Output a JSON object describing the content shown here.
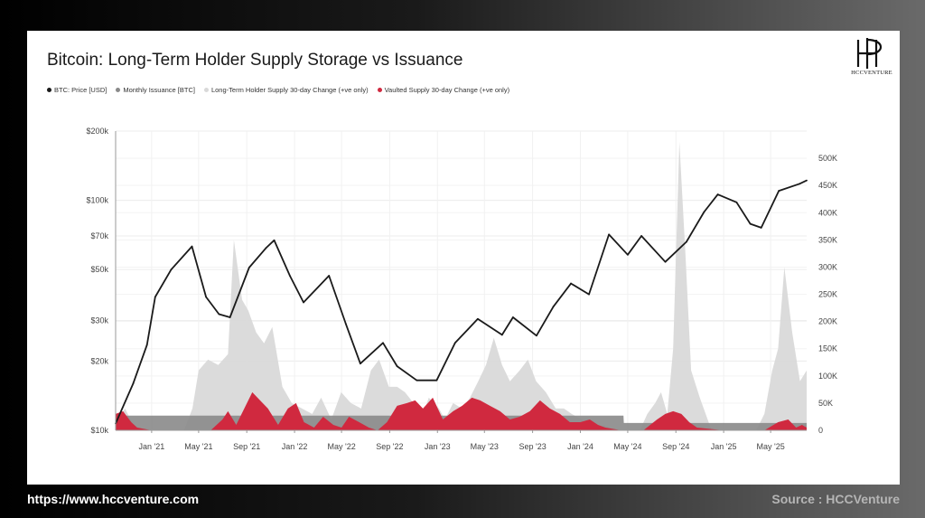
{
  "title": "Bitcoin: Long-Term Holder Supply Storage vs Issuance",
  "logo": {
    "text": "HCCVENTURE",
    "icon": "hcc-monogram-icon"
  },
  "footer": {
    "url": "https://www.hccventure.com",
    "source": "Source : HCCVenture"
  },
  "chart_data": {
    "type": "line",
    "title": "Bitcoin: Long-Term Holder Supply Storage vs Issuance",
    "grid": true,
    "legend_position": "top-left",
    "legend": [
      {
        "name": "BTC: Price [USD]",
        "color": "#1a1a1a"
      },
      {
        "name": "Monthly Issuance [BTC]",
        "color": "#8a8a8a"
      },
      {
        "name": "Long-Term Holder Supply 30-day Change (+ve only)",
        "color": "#d9d9d9"
      },
      {
        "name": "Vaulted Supply 30-day Change (+ve only)",
        "color": "#d0293f"
      }
    ],
    "x_ticks": [
      "Jan '21",
      "May '21",
      "Sep '21",
      "Jan '22",
      "May '22",
      "Sep '22",
      "Jan '23",
      "May '23",
      "Sep '23",
      "Jan '24",
      "May '24",
      "Sep '24",
      "Jan '25",
      "May '25"
    ],
    "x_range": [
      "2020-10-01",
      "2025-08-01"
    ],
    "y_left": {
      "label": "",
      "scale": "log",
      "range": [
        10000,
        200000
      ],
      "ticks": [
        "$10k",
        "$20k",
        "$30k",
        "$50k",
        "$70k",
        "$100k",
        "$200k"
      ],
      "tick_values": [
        10000,
        20000,
        30000,
        50000,
        70000,
        100000,
        200000
      ]
    },
    "y_right": {
      "label": "",
      "scale": "linear",
      "range": [
        0,
        550000
      ],
      "ticks": [
        "0",
        "50K",
        "100K",
        "150K",
        "200K",
        "250K",
        "300K",
        "350K",
        "400K",
        "450K",
        "500K"
      ],
      "tick_values": [
        0,
        50000,
        100000,
        150000,
        200000,
        250000,
        300000,
        350000,
        400000,
        450000,
        500000
      ]
    },
    "series": [
      {
        "name": "BTC: Price [USD]",
        "axis": "left",
        "color": "#1a1a1a",
        "x": [
          "2020-10-01",
          "2020-11-15",
          "2020-12-20",
          "2021-01-10",
          "2021-02-20",
          "2021-04-14",
          "2021-05-20",
          "2021-06-22",
          "2021-07-20",
          "2021-09-07",
          "2021-10-20",
          "2021-11-10",
          "2021-12-20",
          "2022-01-24",
          "2022-03-30",
          "2022-05-12",
          "2022-06-18",
          "2022-08-15",
          "2022-09-20",
          "2022-11-09",
          "2022-12-30",
          "2023-02-15",
          "2023-03-20",
          "2023-04-14",
          "2023-06-15",
          "2023-07-13",
          "2023-09-11",
          "2023-10-24",
          "2023-12-08",
          "2024-01-23",
          "2024-03-14",
          "2024-05-01",
          "2024-06-05",
          "2024-08-05",
          "2024-09-28",
          "2024-11-12",
          "2024-12-17",
          "2025-02-03",
          "2025-03-10",
          "2025-04-07",
          "2025-05-22",
          "2025-07-14",
          "2025-08-01"
        ],
        "values": [
          10700,
          16000,
          23500,
          38000,
          50000,
          63000,
          38000,
          32000,
          31000,
          51000,
          62000,
          67000,
          47000,
          36000,
          47000,
          29000,
          19500,
          24000,
          19000,
          16500,
          16500,
          24000,
          27500,
          30500,
          26000,
          31000,
          25800,
          34500,
          43500,
          39000,
          71000,
          58000,
          70000,
          54000,
          66000,
          89000,
          106000,
          98000,
          79000,
          76000,
          110000,
          118000,
          122000
        ]
      },
      {
        "name": "Monthly Issuance [BTC]",
        "axis": "right",
        "color": "#8a8a8a",
        "x": [
          "2020-10-01",
          "2024-04-20",
          "2024-04-21",
          "2025-08-01"
        ],
        "values": [
          27000,
          27000,
          13500,
          13500
        ]
      },
      {
        "name": "Long-Term Holder Supply 30-day Change (+ve only)",
        "axis": "right",
        "color": "#d9d9d9",
        "x": [
          "2020-10-01",
          "2020-10-25",
          "2020-11-15",
          "2020-12-15",
          "2021-01-15",
          "2021-02-05",
          "2021-03-01",
          "2021-03-25",
          "2021-04-15",
          "2021-05-01",
          "2021-05-25",
          "2021-06-20",
          "2021-07-15",
          "2021-07-30",
          "2021-08-20",
          "2021-09-05",
          "2021-09-25",
          "2021-10-15",
          "2021-11-05",
          "2021-12-01",
          "2021-12-25",
          "2022-01-20",
          "2022-02-15",
          "2022-03-10",
          "2022-04-05",
          "2022-04-30",
          "2022-05-25",
          "2022-06-20",
          "2022-07-15",
          "2022-08-05",
          "2022-08-30",
          "2022-09-20",
          "2022-10-10",
          "2022-11-01",
          "2022-11-20",
          "2022-12-10",
          "2023-01-05",
          "2023-01-20",
          "2023-02-10",
          "2023-03-05",
          "2023-03-25",
          "2023-04-15",
          "2023-05-05",
          "2023-05-25",
          "2023-06-15",
          "2023-07-05",
          "2023-07-30",
          "2023-08-20",
          "2023-09-10",
          "2023-10-05",
          "2023-10-30",
          "2023-11-20",
          "2023-12-10",
          "2024-01-05",
          "2024-02-01",
          "2024-03-01",
          "2024-04-01",
          "2024-04-20",
          "2024-05-10",
          "2024-06-01",
          "2024-06-20",
          "2024-07-10",
          "2024-07-25",
          "2024-08-10",
          "2024-08-25",
          "2024-09-10",
          "2024-09-25",
          "2024-10-10",
          "2024-11-01",
          "2024-12-01",
          "2025-01-01",
          "2025-02-01",
          "2025-03-01",
          "2025-03-25",
          "2025-04-15",
          "2025-05-05",
          "2025-05-20",
          "2025-06-05",
          "2025-06-25",
          "2025-07-15",
          "2025-08-01"
        ],
        "values": [
          10000,
          40000,
          10000,
          0,
          0,
          0,
          0,
          0,
          40000,
          110000,
          130000,
          120000,
          140000,
          350000,
          240000,
          220000,
          180000,
          160000,
          190000,
          80000,
          50000,
          40000,
          30000,
          60000,
          20000,
          70000,
          50000,
          40000,
          110000,
          130000,
          80000,
          80000,
          70000,
          50000,
          20000,
          60000,
          40000,
          20000,
          50000,
          40000,
          60000,
          90000,
          120000,
          170000,
          120000,
          90000,
          110000,
          130000,
          90000,
          70000,
          40000,
          40000,
          30000,
          20000,
          0,
          10000,
          0,
          0,
          0,
          0,
          30000,
          50000,
          70000,
          30000,
          150000,
          530000,
          330000,
          110000,
          60000,
          0,
          0,
          0,
          0,
          0,
          30000,
          110000,
          150000,
          300000,
          180000,
          90000,
          110000
        ]
      },
      {
        "name": "Vaulted Supply 30-day Change (+ve only)",
        "axis": "right",
        "color": "#d0293f",
        "x": [
          "2020-10-01",
          "2020-10-20",
          "2020-11-10",
          "2020-11-25",
          "2021-01-01",
          "2021-06-01",
          "2021-07-01",
          "2021-07-15",
          "2021-08-05",
          "2021-09-15",
          "2021-10-05",
          "2021-10-25",
          "2021-11-20",
          "2021-12-15",
          "2022-01-05",
          "2022-01-25",
          "2022-02-20",
          "2022-03-15",
          "2022-04-10",
          "2022-05-01",
          "2022-05-20",
          "2022-06-15",
          "2022-07-10",
          "2022-08-01",
          "2022-08-25",
          "2022-09-20",
          "2022-10-15",
          "2022-11-05",
          "2022-11-25",
          "2022-12-20",
          "2023-01-15",
          "2023-02-10",
          "2023-03-05",
          "2023-03-30",
          "2023-04-20",
          "2023-05-15",
          "2023-06-10",
          "2023-07-05",
          "2023-07-30",
          "2023-08-25",
          "2023-09-20",
          "2023-10-15",
          "2023-11-10",
          "2023-12-05",
          "2024-01-01",
          "2024-01-25",
          "2024-02-15",
          "2024-03-05",
          "2024-04-15",
          "2024-05-15",
          "2024-06-10",
          "2024-07-15",
          "2024-08-05",
          "2024-08-25",
          "2024-09-15",
          "2024-10-05",
          "2024-10-25",
          "2025-01-01",
          "2025-04-15",
          "2025-05-20",
          "2025-06-15",
          "2025-07-05",
          "2025-07-20",
          "2025-08-01"
        ],
        "values": [
          30000,
          35000,
          15000,
          5000,
          0,
          0,
          20000,
          35000,
          10000,
          70000,
          55000,
          40000,
          10000,
          40000,
          50000,
          15000,
          5000,
          25000,
          10000,
          5000,
          25000,
          15000,
          5000,
          0,
          15000,
          45000,
          50000,
          55000,
          40000,
          60000,
          20000,
          35000,
          45000,
          60000,
          55000,
          45000,
          35000,
          20000,
          25000,
          35000,
          55000,
          40000,
          30000,
          15000,
          15000,
          20000,
          10000,
          5000,
          0,
          0,
          0,
          20000,
          30000,
          35000,
          30000,
          15000,
          5000,
          0,
          0,
          15000,
          20000,
          5000,
          10000,
          5000
        ]
      }
    ]
  }
}
